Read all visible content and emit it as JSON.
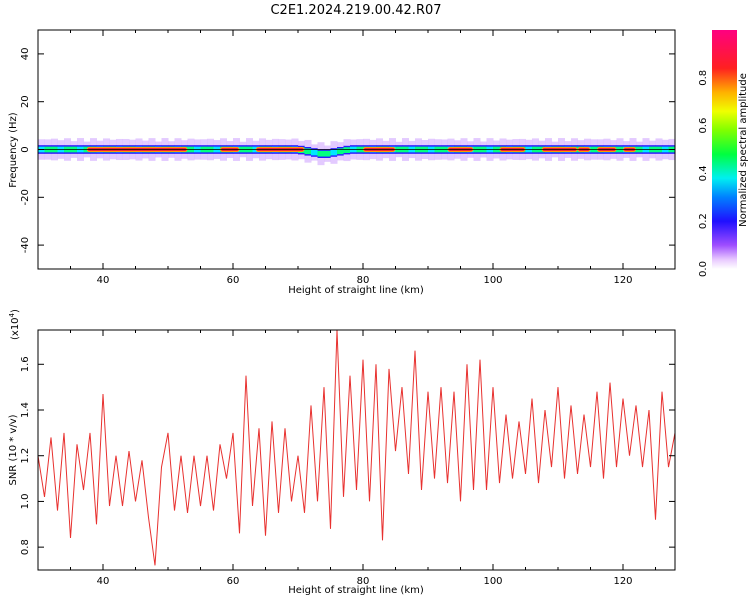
{
  "title": "C2E1.2024.219.00.42.R07",
  "chart_data": [
    {
      "type": "heatmap",
      "xlabel": "Height of straight line (km)",
      "ylabel": "Frequency (Hz)",
      "xlim": [
        30,
        128
      ],
      "ylim": [
        -50,
        50
      ],
      "xticks": [
        40,
        60,
        80,
        100,
        120
      ],
      "yticks": [
        -40,
        -20,
        0,
        20,
        40
      ],
      "ytick_labels": [
        "-40",
        "-20",
        "0",
        "20",
        "40"
      ],
      "colorbar": {
        "label": "Normalized spectral amplitude",
        "range": [
          0,
          1
        ],
        "ticks": [
          0.0,
          0.2,
          0.4,
          0.6,
          0.8
        ],
        "tick_labels": [
          "0.0",
          "0.2",
          "0.4",
          "0.6",
          "0.8"
        ],
        "colormap": "rainbow (white-violet-blue-cyan-green-yellow-red-magenta)"
      },
      "band": {
        "center_hz": [
          [
            30,
            0
          ],
          [
            70,
            0
          ],
          [
            72,
            -1
          ],
          [
            74,
            -2
          ],
          [
            76,
            -1
          ],
          [
            78,
            0
          ],
          [
            128,
            0
          ]
        ],
        "half_width_hz": 1.2,
        "halo_half_width_hz": 4,
        "high_amplitude_segments_km": [
          [
            37.5,
            53
          ],
          [
            58,
            61
          ],
          [
            63.5,
            71
          ],
          [
            80,
            85
          ],
          [
            93,
            97
          ],
          [
            101,
            105
          ],
          [
            107.5,
            113
          ],
          [
            113,
            115
          ],
          [
            116,
            119
          ],
          [
            120,
            122
          ]
        ],
        "low_amplitude_segments_km": [
          [
            30,
            37
          ],
          [
            54,
            57
          ],
          [
            72,
            78
          ],
          [
            85,
            92
          ],
          [
            122,
            128
          ]
        ]
      }
    },
    {
      "type": "line",
      "xlabel": "Height of straight line (km)",
      "ylabel": "SNR (10 * v/v)",
      "yscale_note": "(x10",
      "yscale_exp": "4",
      "yscale_close": ")",
      "xlim": [
        30,
        128
      ],
      "ylim": [
        0.7,
        1.75
      ],
      "xticks": [
        40,
        60,
        80,
        100,
        120
      ],
      "yticks": [
        0.8,
        1.0,
        1.2,
        1.4,
        1.6
      ],
      "ytick_labels": [
        "0.8",
        "1.0",
        "1.2",
        "1.4",
        "1.6"
      ],
      "color": "#e8312f",
      "series": [
        {
          "x": [
            30,
            31,
            32,
            33,
            34,
            35,
            36,
            37,
            38,
            39,
            40,
            41,
            42,
            43,
            44,
            45,
            46,
            47,
            48,
            49,
            50,
            51,
            52,
            53,
            54,
            55,
            56,
            57,
            58,
            59,
            60,
            61,
            62,
            63,
            64,
            65,
            66,
            67,
            68,
            69,
            70,
            71,
            72,
            73,
            74,
            75,
            76,
            77,
            78,
            79,
            80,
            81,
            82,
            83,
            84,
            85,
            86,
            87,
            88,
            89,
            90,
            91,
            92,
            93,
            94,
            95,
            96,
            97,
            98,
            99,
            100,
            101,
            102,
            103,
            104,
            105,
            106,
            107,
            108,
            109,
            110,
            111,
            112,
            113,
            114,
            115,
            116,
            117,
            118,
            119,
            120,
            121,
            122,
            123,
            124,
            125,
            126,
            127,
            128
          ],
          "y": [
            1.2,
            1.02,
            1.28,
            0.96,
            1.3,
            0.84,
            1.25,
            1.05,
            1.3,
            0.9,
            1.47,
            0.98,
            1.2,
            0.98,
            1.22,
            1.0,
            1.18,
            0.93,
            0.72,
            1.15,
            1.3,
            0.96,
            1.2,
            0.95,
            1.2,
            0.98,
            1.2,
            0.96,
            1.25,
            1.1,
            1.3,
            0.86,
            1.55,
            0.98,
            1.32,
            0.85,
            1.35,
            0.95,
            1.32,
            1.0,
            1.2,
            0.95,
            1.42,
            1.0,
            1.5,
            0.88,
            1.75,
            1.02,
            1.55,
            1.05,
            1.62,
            1.0,
            1.6,
            0.83,
            1.58,
            1.22,
            1.5,
            1.12,
            1.66,
            1.05,
            1.48,
            1.1,
            1.5,
            1.08,
            1.48,
            1.0,
            1.6,
            1.05,
            1.62,
            1.05,
            1.5,
            1.08,
            1.38,
            1.1,
            1.35,
            1.12,
            1.45,
            1.08,
            1.4,
            1.15,
            1.5,
            1.1,
            1.42,
            1.12,
            1.38,
            1.15,
            1.48,
            1.1,
            1.52,
            1.15,
            1.45,
            1.2,
            1.42,
            1.15,
            1.4,
            0.92,
            1.48,
            1.15,
            1.3
          ]
        }
      ]
    }
  ]
}
